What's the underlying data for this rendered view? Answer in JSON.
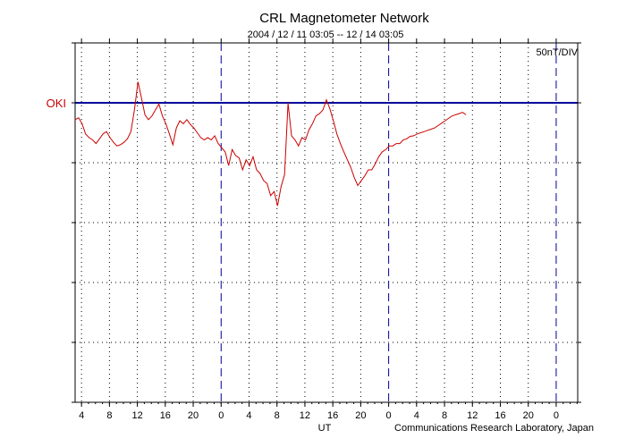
{
  "chart_data": {
    "type": "line",
    "title": "CRL Magnetometer Network",
    "subtitle": "2004 / 12 / 11   03:05 -- 12 / 14   03:05",
    "scale_label": "50nT/DIV",
    "station_label": "OKI",
    "xlabel": "UT",
    "credit": "Communications Research Laboratory, Japan",
    "grid": true,
    "x_range_hours": [
      0,
      72
    ],
    "y_range_div": [
      -5,
      1
    ],
    "baseline_div": 0,
    "day_boundaries_hours": [
      20.917,
      44.917,
      68.917
    ],
    "x_tick_labels": [
      "4",
      "8",
      "12",
      "16",
      "20",
      "0",
      "4",
      "8",
      "12",
      "16",
      "20",
      "0",
      "4",
      "8",
      "12",
      "16",
      "20",
      "0"
    ],
    "colors": {
      "trace": "#cc0000",
      "baseline": "#000099",
      "day_line": "#000099",
      "axis": "#000000",
      "grid": "#000000"
    },
    "series": [
      {
        "values": [
          [
            0.0,
            -0.28
          ],
          [
            0.5,
            -0.25
          ],
          [
            1.0,
            -0.35
          ],
          [
            1.5,
            -0.52
          ],
          [
            2.0,
            -0.58
          ],
          [
            2.5,
            -0.62
          ],
          [
            3.0,
            -0.68
          ],
          [
            3.5,
            -0.6
          ],
          [
            4.0,
            -0.52
          ],
          [
            4.5,
            -0.48
          ],
          [
            5.0,
            -0.58
          ],
          [
            5.5,
            -0.66
          ],
          [
            6.0,
            -0.72
          ],
          [
            6.5,
            -0.7
          ],
          [
            7.0,
            -0.66
          ],
          [
            7.5,
            -0.6
          ],
          [
            8.0,
            -0.48
          ],
          [
            8.5,
            -0.12
          ],
          [
            9.0,
            0.35
          ],
          [
            9.5,
            0.08
          ],
          [
            10.0,
            -0.2
          ],
          [
            10.5,
            -0.28
          ],
          [
            11.0,
            -0.22
          ],
          [
            11.5,
            -0.12
          ],
          [
            12.0,
            -0.02
          ],
          [
            12.5,
            -0.22
          ],
          [
            13.0,
            -0.35
          ],
          [
            13.5,
            -0.52
          ],
          [
            14.0,
            -0.7
          ],
          [
            14.5,
            -0.42
          ],
          [
            15.0,
            -0.3
          ],
          [
            15.5,
            -0.35
          ],
          [
            16.0,
            -0.28
          ],
          [
            16.5,
            -0.36
          ],
          [
            17.0,
            -0.42
          ],
          [
            17.5,
            -0.5
          ],
          [
            18.0,
            -0.58
          ],
          [
            18.5,
            -0.62
          ],
          [
            19.0,
            -0.58
          ],
          [
            19.5,
            -0.62
          ],
          [
            20.0,
            -0.55
          ],
          [
            20.5,
            -0.68
          ],
          [
            21.0,
            -0.75
          ],
          [
            21.5,
            -0.82
          ],
          [
            22.0,
            -1.05
          ],
          [
            22.5,
            -0.78
          ],
          [
            23.0,
            -0.88
          ],
          [
            23.5,
            -0.92
          ],
          [
            24.0,
            -1.12
          ],
          [
            24.5,
            -0.95
          ],
          [
            25.0,
            -1.05
          ],
          [
            25.5,
            -0.9
          ],
          [
            26.0,
            -1.12
          ],
          [
            26.5,
            -1.18
          ],
          [
            27.0,
            -1.3
          ],
          [
            27.5,
            -1.35
          ],
          [
            28.0,
            -1.55
          ],
          [
            28.5,
            -1.48
          ],
          [
            29.0,
            -1.72
          ],
          [
            29.5,
            -1.4
          ],
          [
            30.0,
            -1.2
          ],
          [
            30.5,
            0.0
          ],
          [
            31.0,
            -0.55
          ],
          [
            31.5,
            -0.62
          ],
          [
            32.0,
            -0.72
          ],
          [
            32.5,
            -0.58
          ],
          [
            33.0,
            -0.62
          ],
          [
            33.5,
            -0.45
          ],
          [
            34.0,
            -0.35
          ],
          [
            34.5,
            -0.22
          ],
          [
            35.0,
            -0.18
          ],
          [
            35.5,
            -0.12
          ],
          [
            36.0,
            0.05
          ],
          [
            36.5,
            -0.1
          ],
          [
            37.0,
            -0.3
          ],
          [
            37.5,
            -0.52
          ],
          [
            38.0,
            -0.68
          ],
          [
            38.5,
            -0.82
          ],
          [
            39.0,
            -0.95
          ],
          [
            39.5,
            -1.08
          ],
          [
            40.0,
            -1.25
          ],
          [
            40.5,
            -1.38
          ],
          [
            41.0,
            -1.3
          ],
          [
            41.5,
            -1.22
          ],
          [
            42.0,
            -1.12
          ],
          [
            42.5,
            -1.12
          ],
          [
            43.0,
            -1.02
          ],
          [
            43.5,
            -0.9
          ],
          [
            44.0,
            -0.82
          ],
          [
            44.5,
            -0.78
          ],
          [
            45.0,
            -0.72
          ],
          [
            45.5,
            -0.72
          ],
          [
            46.0,
            -0.68
          ],
          [
            46.5,
            -0.68
          ],
          [
            47.0,
            -0.62
          ],
          [
            47.5,
            -0.6
          ],
          [
            48.0,
            -0.56
          ],
          [
            48.5,
            -0.55
          ],
          [
            49.0,
            -0.52
          ],
          [
            49.5,
            -0.5
          ],
          [
            50.0,
            -0.48
          ],
          [
            50.5,
            -0.46
          ],
          [
            51.0,
            -0.44
          ],
          [
            51.5,
            -0.42
          ],
          [
            52.0,
            -0.38
          ],
          [
            52.5,
            -0.34
          ],
          [
            53.0,
            -0.3
          ],
          [
            53.5,
            -0.26
          ],
          [
            54.0,
            -0.22
          ],
          [
            54.5,
            -0.2
          ],
          [
            55.0,
            -0.18
          ],
          [
            55.5,
            -0.16
          ],
          [
            56.0,
            -0.2
          ]
        ]
      }
    ]
  }
}
